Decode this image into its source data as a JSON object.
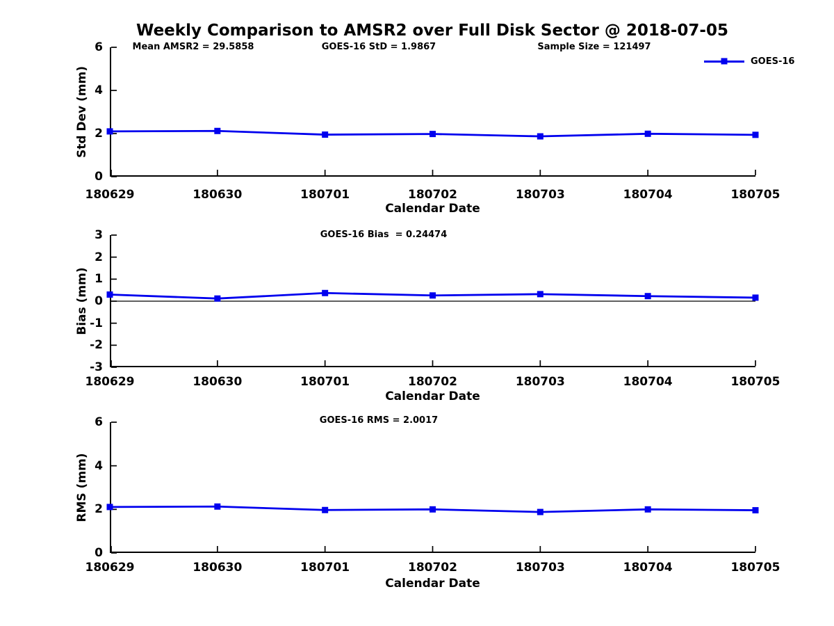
{
  "title": "Weekly Comparison to AMSR2 over Full Disk Sector @ 2018-07-05",
  "header_stats": {
    "mean_amsr2": "Mean AMSR2 = 29.5858",
    "goes_std": "GOES-16 StD = 1.9867",
    "sample_size": "Sample Size = 121497"
  },
  "legend": {
    "label": "GOES-16",
    "color": "#0000ee",
    "position": "top-right"
  },
  "chart_data": [
    {
      "type": "line",
      "title": "",
      "ylabel": "Std Dev (mm)",
      "xlabel": "Calendar Date",
      "annotation": "",
      "categories": [
        "180629",
        "180630",
        "180701",
        "180702",
        "180703",
        "180704",
        "180705"
      ],
      "series": [
        {
          "name": "GOES-16",
          "values": [
            2.1,
            2.12,
            1.95,
            1.98,
            1.87,
            1.99,
            1.94
          ]
        }
      ],
      "ylim": [
        0,
        6
      ],
      "ytick_values": [
        6,
        4,
        2,
        0
      ],
      "ytick_labels": [
        "6",
        "4",
        "2",
        "0"
      ],
      "grid": false,
      "zero_line": false,
      "marker": "square"
    },
    {
      "type": "line",
      "title": "",
      "ylabel": "Bias (mm)",
      "xlabel": "Calendar Date",
      "annotation": "GOES-16 Bias  = 0.24474",
      "categories": [
        "180629",
        "180630",
        "180701",
        "180702",
        "180703",
        "180704",
        "180705"
      ],
      "series": [
        {
          "name": "GOES-16",
          "values": [
            0.3,
            0.12,
            0.37,
            0.26,
            0.32,
            0.23,
            0.16
          ]
        }
      ],
      "ylim": [
        -3,
        3
      ],
      "ytick_values": [
        3,
        2,
        1,
        0,
        -1,
        -2,
        -3
      ],
      "ytick_labels": [
        "3",
        "2",
        "1",
        "0",
        "-1",
        "-2",
        "-3"
      ],
      "grid": false,
      "zero_line": true,
      "marker": "square"
    },
    {
      "type": "line",
      "title": "",
      "ylabel": "RMS (mm)",
      "xlabel": "Calendar Date",
      "annotation": "GOES-16 RMS = 2.0017",
      "categories": [
        "180629",
        "180630",
        "180701",
        "180702",
        "180703",
        "180704",
        "180705"
      ],
      "series": [
        {
          "name": "GOES-16",
          "values": [
            2.11,
            2.13,
            1.97,
            2.0,
            1.88,
            2.0,
            1.96
          ]
        }
      ],
      "ylim": [
        0,
        6
      ],
      "ytick_values": [
        6,
        4,
        2,
        0
      ],
      "ytick_labels": [
        "6",
        "4",
        "2",
        "0"
      ],
      "grid": false,
      "zero_line": false,
      "marker": "square"
    }
  ]
}
